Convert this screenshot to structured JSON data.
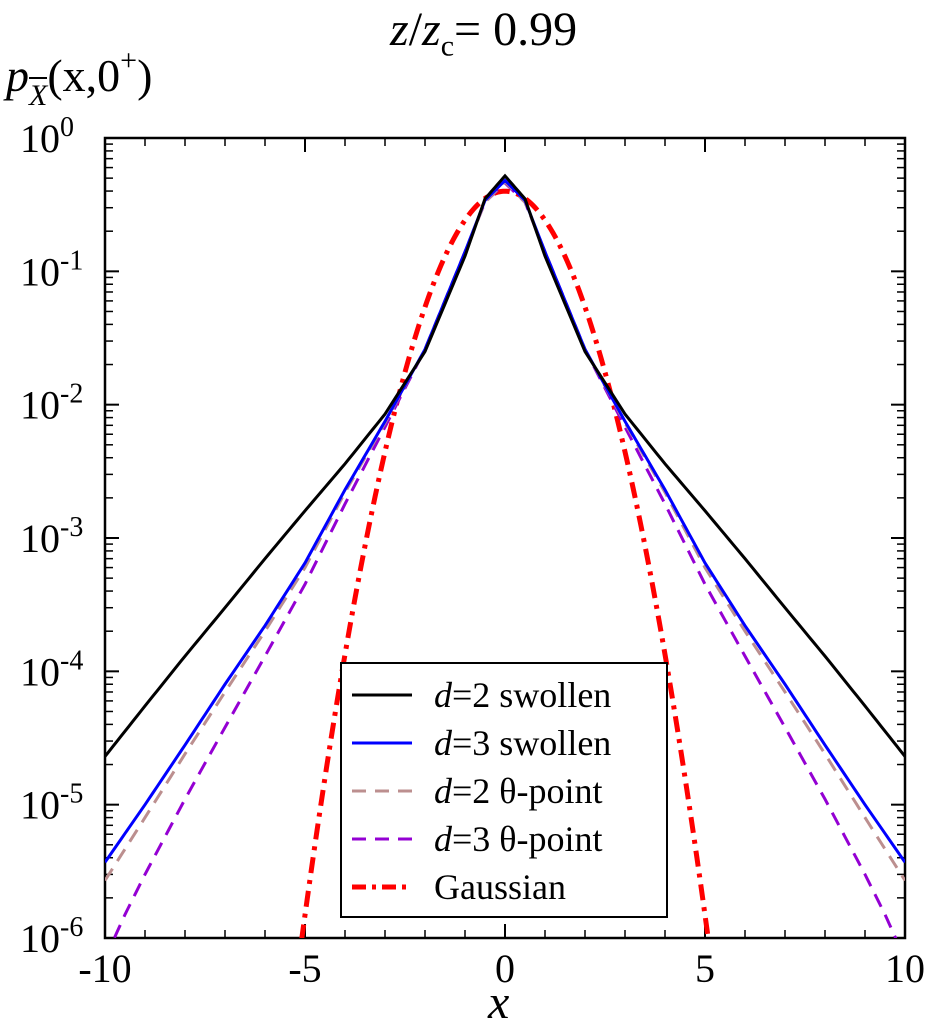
{
  "chart_data": {
    "type": "line",
    "title_parts": {
      "z": "z",
      "slash": "/",
      "zc": "z",
      "zc_sub": "c",
      "value": "= 0.99"
    },
    "ylabel_parts": {
      "p": "p",
      "sub": "X",
      "args": "(x,0",
      "sup": "+",
      "close": ")"
    },
    "xlabel": "x",
    "xlim": [
      -10,
      10
    ],
    "ylim": [
      1e-06,
      1
    ],
    "yscale": "log",
    "xticks": [
      "-10",
      "-5",
      "0",
      "5",
      "10"
    ],
    "yticks": [
      {
        "base": "10",
        "exp": "0"
      },
      {
        "base": "10",
        "exp": "-1"
      },
      {
        "base": "10",
        "exp": "-2"
      },
      {
        "base": "10",
        "exp": "-3"
      },
      {
        "base": "10",
        "exp": "-4"
      },
      {
        "base": "10",
        "exp": "-5"
      },
      {
        "base": "10",
        "exp": "-6"
      }
    ],
    "legend_position": "bottom-center",
    "series": [
      {
        "d": "d",
        "name": "=2 swollen",
        "color": "#000000",
        "style": "solid",
        "x": [
          -10,
          -9,
          -8,
          -7,
          -6,
          -5,
          -4,
          -3,
          -2,
          -1,
          -0.5,
          0,
          0.5,
          1,
          2,
          3,
          4,
          5,
          6,
          7,
          8,
          9,
          10
        ],
        "y": [
          2.3e-05,
          5.5e-05,
          0.00013,
          0.0003,
          0.0007,
          0.0016,
          0.0036,
          0.0085,
          0.025,
          0.13,
          0.35,
          0.52,
          0.35,
          0.13,
          0.025,
          0.0085,
          0.0036,
          0.0016,
          0.0007,
          0.0003,
          0.00013,
          5.5e-05,
          2.3e-05
        ]
      },
      {
        "d": "d",
        "name": "=3 swollen",
        "color": "#0000ff",
        "style": "solid",
        "x": [
          -10,
          -9,
          -8,
          -7,
          -6,
          -5,
          -4,
          -3,
          -2,
          -1,
          -0.5,
          0,
          0.5,
          1,
          2,
          3,
          4,
          5,
          6,
          7,
          8,
          9,
          10
        ],
        "y": [
          3.7e-06,
          1e-05,
          2.8e-05,
          8e-05,
          0.00022,
          0.00065,
          0.0023,
          0.0075,
          0.026,
          0.14,
          0.34,
          0.48,
          0.34,
          0.14,
          0.026,
          0.0075,
          0.0023,
          0.00065,
          0.00022,
          8e-05,
          2.8e-05,
          1e-05,
          3.7e-06
        ]
      },
      {
        "d": "d",
        "name": "=2 θ-point",
        "color": "#bc8f8f",
        "style": "dash",
        "x": [
          -10,
          -9,
          -8,
          -7,
          -6,
          -5,
          -4,
          -3,
          -2,
          -1,
          -0.5,
          0,
          0.5,
          1,
          2,
          3,
          4,
          5,
          6,
          7,
          8,
          9,
          10
        ],
        "y": [
          2.7e-06,
          8e-06,
          2.4e-05,
          7e-05,
          0.0002,
          0.0006,
          0.0022,
          0.0073,
          0.026,
          0.14,
          0.33,
          0.47,
          0.33,
          0.14,
          0.026,
          0.0073,
          0.0022,
          0.0006,
          0.0002,
          7e-05,
          2.4e-05,
          8e-06,
          2.7e-06
        ]
      },
      {
        "d": "d",
        "name": "=3 θ-point",
        "color": "#9400d3",
        "style": "dash",
        "x": [
          -10,
          -9.5,
          -9,
          -8,
          -7,
          -6,
          -5,
          -4,
          -3,
          -2,
          -1,
          -0.5,
          0,
          0.5,
          1,
          2,
          3,
          4,
          5,
          6,
          7,
          8,
          9,
          9.5,
          10
        ],
        "y": [
          7e-07,
          1.5e-06,
          3e-06,
          1.1e-05,
          3.8e-05,
          0.00013,
          0.00045,
          0.0018,
          0.0068,
          0.026,
          0.14,
          0.33,
          0.46,
          0.33,
          0.14,
          0.026,
          0.0068,
          0.0018,
          0.00045,
          0.00013,
          3.8e-05,
          1.1e-05,
          3e-06,
          1.5e-06,
          7e-07
        ]
      },
      {
        "d": "",
        "name": "Gaussian",
        "color": "#ff0000",
        "style": "dashdot",
        "func": "gaussian",
        "mean": 0,
        "sigma": 1,
        "xrange": [
          -5.2,
          5.2
        ]
      }
    ]
  }
}
